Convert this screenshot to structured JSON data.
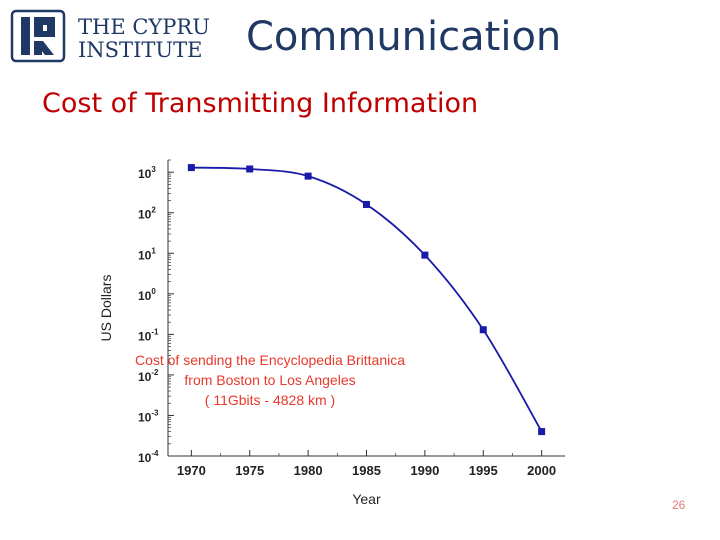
{
  "header": {
    "logo_line1": "THE CYPRUS",
    "logo_line2": "INSTITUTE",
    "title": "Communication"
  },
  "subtitle": "Cost of Transmitting Information",
  "chart_data": {
    "type": "line",
    "x": [
      1970,
      1975,
      1980,
      1985,
      1990,
      1995,
      2000
    ],
    "series": [
      {
        "values": [
          1300,
          1200,
          800,
          160,
          9,
          0.13,
          0.0004
        ],
        "color": "#1a1aa8"
      }
    ],
    "xlabel": "Year",
    "ylabel": "US Dollars",
    "xlim": [
      1968,
      2002
    ],
    "ylim": [
      0.0001,
      2000
    ],
    "yscale": "log",
    "x_ticks": [
      "1970",
      "1975",
      "1980",
      "1985",
      "1990",
      "1995",
      "2000"
    ],
    "y_ticks": [
      {
        "base": "10",
        "exp": "3",
        "value": 1000
      },
      {
        "base": "10",
        "exp": "2",
        "value": 100
      },
      {
        "base": "10",
        "exp": "1",
        "value": 10
      },
      {
        "base": "10",
        "exp": "0",
        "value": 1
      },
      {
        "base": "10",
        "exp": "-1",
        "value": 0.1
      },
      {
        "base": "10",
        "exp": "-2",
        "value": 0.01
      },
      {
        "base": "10",
        "exp": "-3",
        "value": 0.001
      },
      {
        "base": "10",
        "exp": "-4",
        "value": 0.0001
      }
    ],
    "annotation": [
      "Cost of sending the Encyclopedia Brittanica",
      "from Boston to Los Angeles",
      "( 11Gbits - 4828 km )"
    ],
    "annotation_color": "#e8392b",
    "grid": false
  },
  "page_number": "26"
}
